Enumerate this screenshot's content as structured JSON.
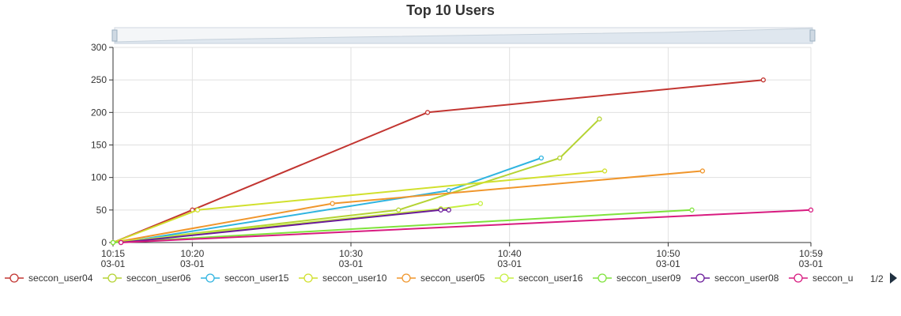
{
  "chart_data": {
    "type": "line",
    "title": "Top 10 Users",
    "xlabel": "",
    "ylabel": "",
    "x_axis": {
      "type": "time",
      "min": "03-01 10:15",
      "max": "03-01 10:59",
      "ticks": [
        {
          "time": "10:15",
          "date": "03-01"
        },
        {
          "time": "10:20",
          "date": "03-01"
        },
        {
          "time": "10:30",
          "date": "03-01"
        },
        {
          "time": "10:40",
          "date": "03-01"
        },
        {
          "time": "10:50",
          "date": "03-01"
        },
        {
          "time": "10:59",
          "date": "03-01"
        }
      ]
    },
    "ylim": [
      0,
      300
    ],
    "y_ticks": [
      0,
      50,
      100,
      150,
      200,
      250,
      300
    ],
    "grid": true,
    "data_zoom_slider": true,
    "legend": {
      "position": "bottom",
      "page": "1/2",
      "items": [
        "seccon_user04",
        "seccon_user06",
        "seccon_user15",
        "seccon_user10",
        "seccon_user05",
        "seccon_user16",
        "seccon_user09",
        "seccon_user08",
        "seccon_u"
      ]
    },
    "series": [
      {
        "name": "seccon_user04",
        "color": "#c23531",
        "points": [
          [
            "10:15:00",
            0
          ],
          [
            "10:20:00",
            50
          ],
          [
            "10:34:50",
            200
          ],
          [
            "10:56:00",
            250
          ]
        ]
      },
      {
        "name": "seccon_user06",
        "color": "#b5d334",
        "points": [
          [
            "10:15:00",
            0
          ],
          [
            "10:33:00",
            50
          ],
          [
            "10:43:10",
            130
          ],
          [
            "10:45:40",
            190
          ]
        ]
      },
      {
        "name": "seccon_user15",
        "color": "#2fb4e0",
        "points": [
          [
            "10:15:30",
            0
          ],
          [
            "10:36:10",
            80
          ],
          [
            "10:42:00",
            130
          ]
        ]
      },
      {
        "name": "seccon_user10",
        "color": "#d1e02d",
        "points": [
          [
            "10:15:00",
            0
          ],
          [
            "10:20:20",
            50
          ],
          [
            "10:46:00",
            110
          ]
        ]
      },
      {
        "name": "seccon_user05",
        "color": "#f0962c",
        "points": [
          [
            "10:15:00",
            0
          ],
          [
            "10:28:50",
            60
          ],
          [
            "10:52:10",
            110
          ]
        ]
      },
      {
        "name": "seccon_user16",
        "color": "#c6ef40",
        "points": [
          [
            "10:15:00",
            0
          ],
          [
            "10:35:40",
            52
          ],
          [
            "10:38:10",
            60
          ]
        ]
      },
      {
        "name": "seccon_user09",
        "color": "#7fe33c",
        "points": [
          [
            "10:15:00",
            0
          ],
          [
            "10:51:30",
            50
          ]
        ]
      },
      {
        "name": "seccon_user08",
        "color": "#6a1b9a",
        "points": [
          [
            "10:15:30",
            0
          ],
          [
            "10:35:40",
            50
          ],
          [
            "10:36:10",
            50
          ]
        ]
      },
      {
        "name": "seccon_user",
        "color": "#d81b80",
        "points": [
          [
            "10:15:30",
            0
          ],
          [
            "10:59:00",
            50
          ]
        ]
      }
    ]
  }
}
